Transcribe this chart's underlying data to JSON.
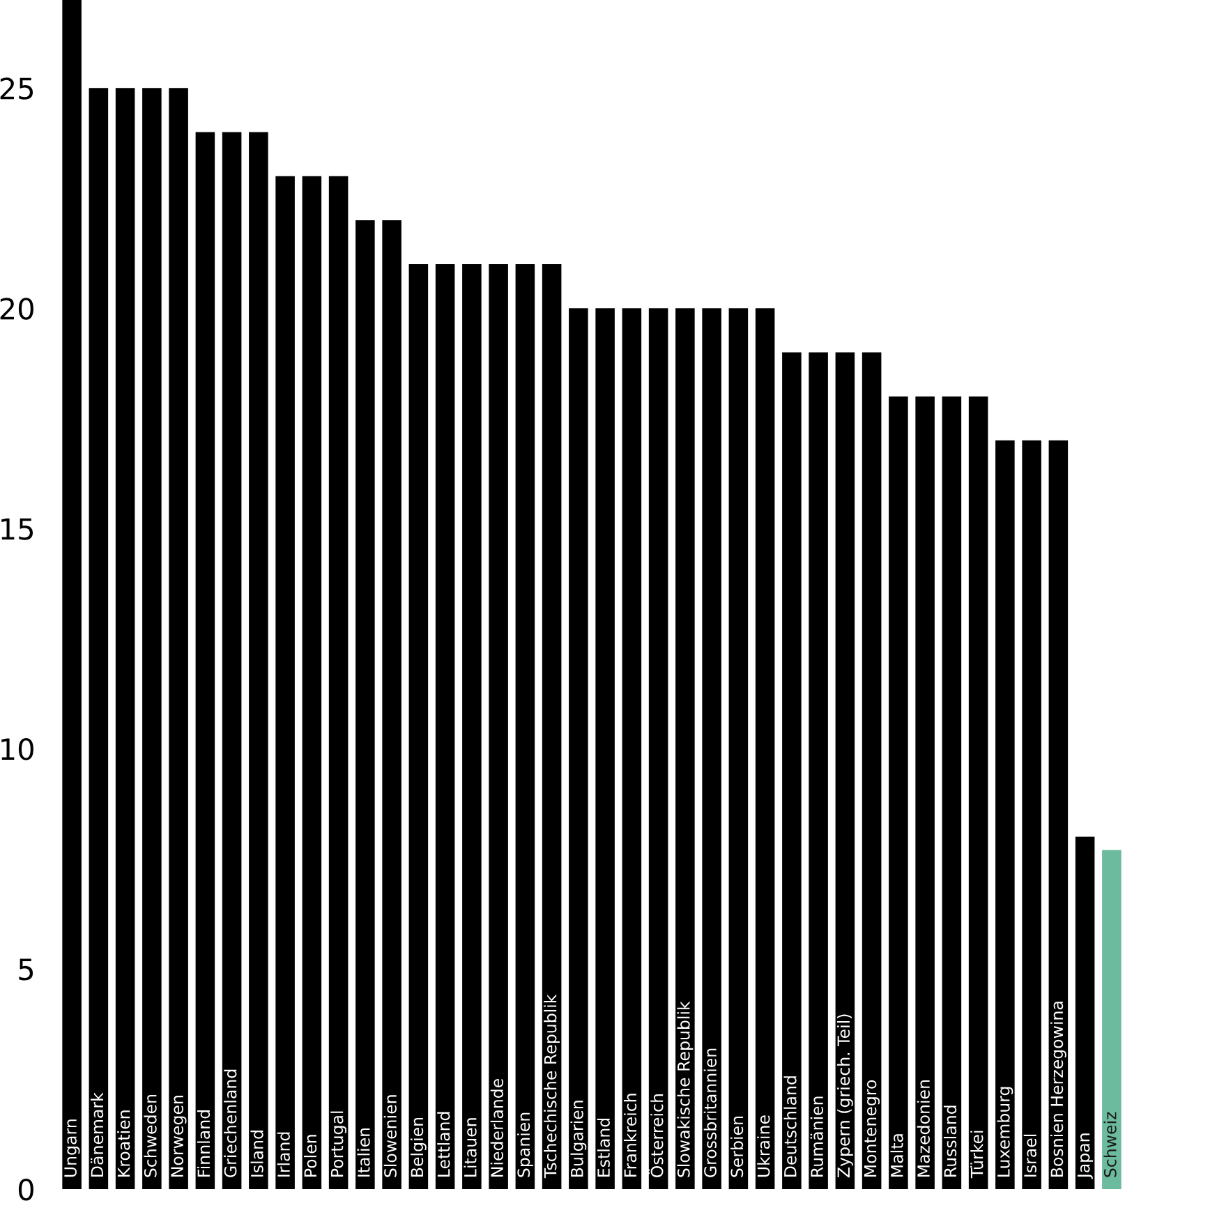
{
  "chart_data": {
    "type": "bar",
    "categories": [
      "Ungarn",
      "Dänemark",
      "Kroatien",
      "Schweden",
      "Norwegen",
      "Finnland",
      "Griechenland",
      "Island",
      "Irland",
      "Polen",
      "Portugal",
      "Italien",
      "Slowenien",
      "Belgien",
      "Lettland",
      "Litauen",
      "Niederlande",
      "Spanien",
      "Tschechische Republik",
      "Bulgarien",
      "Estland",
      "Frankreich",
      "Österreich",
      "Slowakische Republik",
      "Grossbritannien",
      "Serbien",
      "Ukraine",
      "Deutschland",
      "Rumänien",
      "Zypern (griech. Teil)",
      "Montenegro",
      "Malta",
      "Mazedonien",
      "Russland",
      "Türkei",
      "Luxemburg",
      "Israel",
      "Bosnien Herzegowina",
      "Japan",
      "Schweiz"
    ],
    "values": [
      27,
      25,
      25,
      25,
      25,
      24,
      24,
      24,
      23,
      23,
      23,
      22,
      22,
      21,
      21,
      21,
      21,
      21,
      21,
      20,
      20,
      20,
      20,
      20,
      20,
      20,
      20,
      19,
      19,
      19,
      19,
      18,
      18,
      18,
      18,
      17,
      17,
      17,
      8,
      7.7
    ],
    "colors": [
      "#000000",
      "#000000",
      "#000000",
      "#000000",
      "#000000",
      "#000000",
      "#000000",
      "#000000",
      "#000000",
      "#000000",
      "#000000",
      "#000000",
      "#000000",
      "#000000",
      "#000000",
      "#000000",
      "#000000",
      "#000000",
      "#000000",
      "#000000",
      "#000000",
      "#000000",
      "#000000",
      "#000000",
      "#000000",
      "#000000",
      "#000000",
      "#000000",
      "#000000",
      "#000000",
      "#000000",
      "#000000",
      "#000000",
      "#000000",
      "#000000",
      "#000000",
      "#000000",
      "#000000",
      "#000000",
      "#6dbb9e"
    ],
    "ylim": [
      0,
      27
    ],
    "yticks": [
      0,
      5,
      10,
      15,
      20,
      25
    ],
    "grid": false,
    "legend": false
  }
}
